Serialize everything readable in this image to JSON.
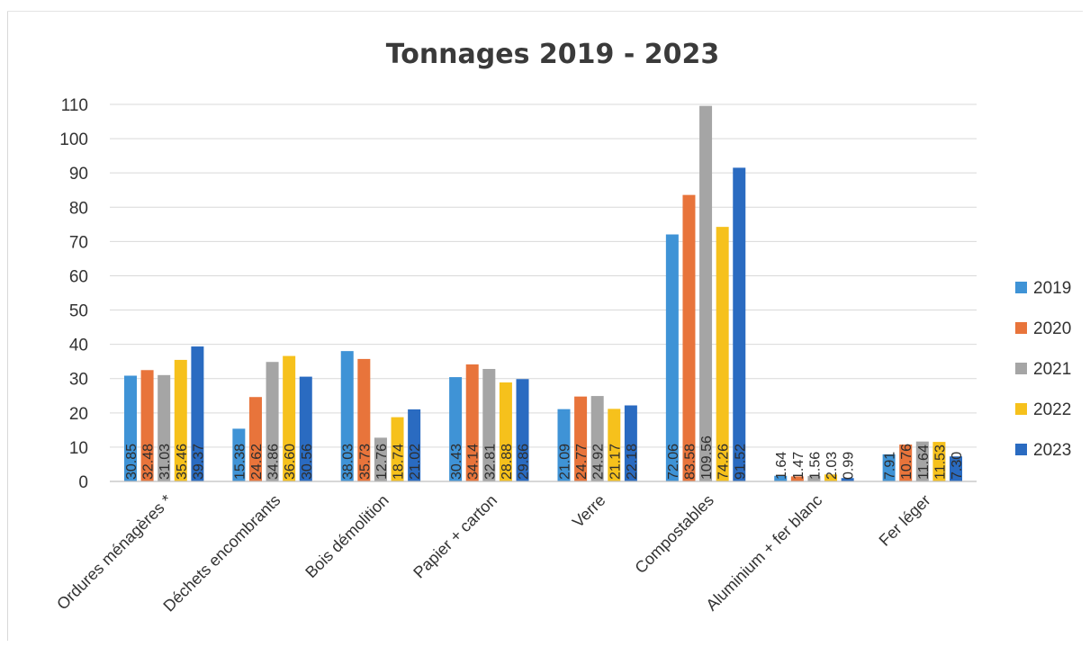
{
  "chart_data": {
    "type": "bar",
    "title": "Tonnages 2019 - 2023",
    "xlabel": "",
    "ylabel": "",
    "ylim": [
      0,
      110
    ],
    "yticks": [
      "0",
      "10",
      "20",
      "30",
      "40",
      "50",
      "60",
      "70",
      "80",
      "90",
      "100",
      "110"
    ],
    "grid": true,
    "legend_position": "right",
    "categories": [
      "Ordures ménagères *",
      "Déchets encombrants",
      "Bois démolition",
      "Papier + carton",
      "Verre",
      "Compostables",
      "Aluminium + fer blanc",
      "Fer léger"
    ],
    "series": [
      {
        "name": "2019",
        "color": "#3f93d6",
        "values": [
          30.85,
          15.38,
          38.03,
          30.43,
          21.09,
          72.06,
          1.64,
          7.91
        ],
        "labels": [
          "30.85",
          "15.38",
          "38.03",
          "30.43",
          "21.09",
          "72.06",
          "1.64",
          "7.91"
        ]
      },
      {
        "name": "2020",
        "color": "#e8743b",
        "values": [
          32.48,
          24.62,
          35.73,
          34.14,
          24.77,
          83.58,
          1.47,
          10.76
        ],
        "labels": [
          "32.48",
          "24.62",
          "35.73",
          "34.14",
          "24.77",
          "83.58",
          "1.47",
          "10.76"
        ]
      },
      {
        "name": "2021",
        "color": "#a5a5a5",
        "values": [
          31.03,
          34.86,
          12.76,
          32.81,
          24.92,
          109.56,
          1.56,
          11.64
        ],
        "labels": [
          "31.03",
          "34.86",
          "12.76",
          "32.81",
          "24.92",
          "109.56",
          "1.56",
          "11.64"
        ]
      },
      {
        "name": "2022",
        "color": "#f6c11c",
        "values": [
          35.46,
          36.6,
          18.74,
          28.88,
          21.17,
          74.26,
          2.03,
          11.53
        ],
        "labels": [
          "35.46",
          "36.60",
          "18.74",
          "28.88",
          "21.17",
          "74.26",
          "2.03",
          "11.53"
        ]
      },
      {
        "name": "2023",
        "color": "#2a6bc1",
        "values": [
          39.37,
          30.56,
          21.02,
          29.86,
          22.18,
          91.52,
          0.99,
          7.3
        ],
        "labels": [
          "39.37",
          "30.56",
          "21.02",
          "29.86",
          "22.18",
          "91.52",
          "0.99",
          "7.30"
        ]
      }
    ]
  }
}
